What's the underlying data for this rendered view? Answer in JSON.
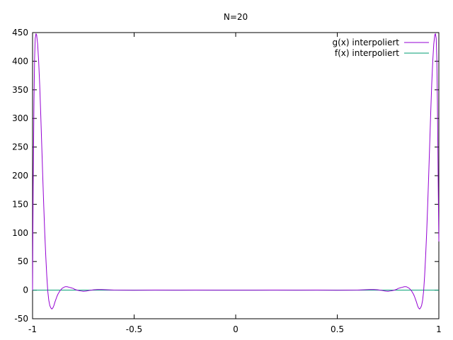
{
  "chart_data": {
    "type": "line",
    "title": "N=20",
    "xlabel": "",
    "ylabel": "",
    "xlim": [
      -1,
      1
    ],
    "ylim": [
      -50,
      450
    ],
    "x_ticks": [
      -1,
      -0.5,
      0,
      0.5,
      1
    ],
    "x_tick_labels": [
      "-1",
      "-0.5",
      "0",
      "0.5",
      "1"
    ],
    "y_ticks": [
      -50,
      0,
      50,
      100,
      150,
      200,
      250,
      300,
      350,
      400,
      450
    ],
    "y_tick_labels": [
      "-50",
      "0",
      "50",
      "100",
      "150",
      "200",
      "250",
      "300",
      "350",
      "400",
      "450"
    ],
    "grid": false,
    "legend_position": "top-right",
    "series": [
      {
        "name": "g(x) interpoliert",
        "color": "#9400d3",
        "x": [
          -1.0,
          -0.997,
          -0.993,
          -0.99,
          -0.987,
          -0.983,
          -0.98,
          -0.975,
          -0.97,
          -0.965,
          -0.96,
          -0.955,
          -0.95,
          -0.945,
          -0.94,
          -0.935,
          -0.93,
          -0.925,
          -0.92,
          -0.915,
          -0.91,
          -0.905,
          -0.9,
          -0.895,
          -0.89,
          -0.885,
          -0.88,
          -0.875,
          -0.87,
          -0.865,
          -0.86,
          -0.855,
          -0.85,
          -0.84,
          -0.83,
          -0.82,
          -0.81,
          -0.8,
          -0.79,
          -0.78,
          -0.77,
          -0.76,
          -0.75,
          -0.74,
          -0.73,
          -0.72,
          -0.71,
          -0.7,
          -0.68,
          -0.66,
          -0.64,
          -0.62,
          -0.6,
          -0.5,
          -0.4,
          -0.3,
          -0.2,
          -0.1,
          0.0,
          0.1,
          0.2,
          0.3,
          0.4,
          0.5,
          0.6,
          0.62,
          0.64,
          0.66,
          0.68,
          0.7,
          0.71,
          0.72,
          0.73,
          0.74,
          0.75,
          0.76,
          0.77,
          0.78,
          0.79,
          0.8,
          0.81,
          0.82,
          0.83,
          0.84,
          0.85,
          0.855,
          0.86,
          0.865,
          0.87,
          0.875,
          0.88,
          0.885,
          0.89,
          0.895,
          0.9,
          0.905,
          0.91,
          0.915,
          0.92,
          0.925,
          0.93,
          0.935,
          0.94,
          0.945,
          0.95,
          0.955,
          0.96,
          0.965,
          0.97,
          0.975,
          0.98,
          0.983,
          0.987,
          0.99,
          0.993,
          0.997,
          1.0
        ],
        "values": [
          0,
          180,
          330,
          405,
          440,
          448,
          446,
          430,
          400,
          360,
          310,
          255,
          200,
          148,
          100,
          60,
          25,
          -2,
          -18,
          -27,
          -31,
          -33,
          -31,
          -27,
          -21,
          -16,
          -11,
          -7,
          -4,
          -1,
          1,
          3,
          4,
          6,
          6,
          5,
          4,
          3,
          1,
          0,
          -1,
          -1.5,
          -2,
          -1.8,
          -1.2,
          -0.5,
          0,
          0.6,
          1,
          1,
          0.8,
          0.4,
          0.1,
          -0.2,
          0.1,
          -0.1,
          0.1,
          0,
          0,
          0,
          0.1,
          -0.1,
          0.1,
          -0.2,
          0.1,
          0.4,
          0.8,
          1,
          1,
          0.6,
          0,
          -0.5,
          -1.2,
          -1.8,
          -2,
          -1.5,
          -1,
          0,
          1,
          3,
          4,
          5,
          6,
          6,
          4,
          3,
          1,
          -1,
          -4,
          -7,
          -11,
          -16,
          -21,
          -27,
          -31,
          -33,
          -31,
          -27,
          -18,
          -2,
          25,
          60,
          100,
          148,
          200,
          255,
          310,
          360,
          400,
          430,
          446,
          448,
          440,
          405,
          330,
          180,
          85
        ]
      },
      {
        "name": "f(x) interpoliert",
        "color": "#009e73",
        "x": [
          -1.0,
          -0.5,
          0.0,
          0.5,
          1.0
        ],
        "values": [
          0,
          0,
          0,
          0,
          0
        ]
      }
    ]
  }
}
